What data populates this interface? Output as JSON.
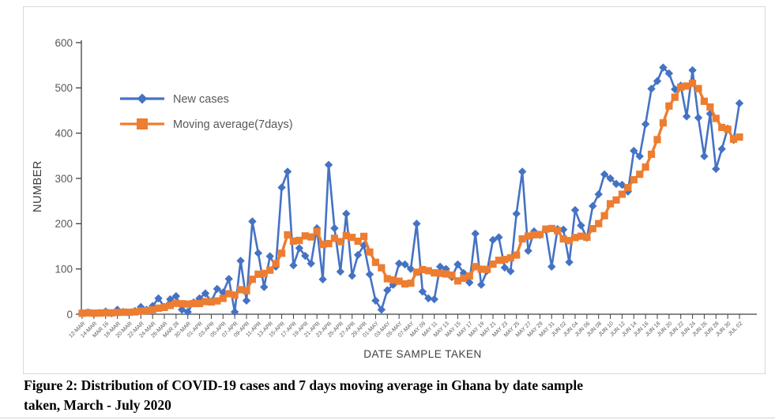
{
  "figure": {
    "caption_line1": "Figure 2: Distribution of COVID-19 cases and 7 days moving average in Ghana by date sample",
    "caption_line2": "taken, March - July 2020"
  },
  "chart_data": {
    "type": "line",
    "title": "",
    "xlabel": "DATE SAMPLE TAKEN",
    "ylabel": "NUMBER",
    "ylim": [
      0,
      600
    ],
    "y_ticks": [
      0,
      100,
      200,
      300,
      400,
      500,
      600
    ],
    "grid": false,
    "legend_position": "upper-left-inside",
    "axis_color": "#404040",
    "tick_label_color": "#595959",
    "x_tick_labels": [
      "12-MAR",
      "14-MAR",
      "MAR 16",
      "18-MAR",
      "20-MAR",
      "22-MAR",
      "24-MAR",
      "26-MAR",
      "MAR 28",
      "30-MAR",
      "01-APR",
      "03-APR",
      "05-APR",
      "07-APR",
      "09-APR",
      "11-APR",
      "13-APR",
      "15-APR",
      "17-APR",
      "19-APR",
      "21-APR",
      "23-APR",
      "25-APR",
      "27-APR",
      "29-APR",
      "01-MAY",
      "03-MAY",
      "05-MAY",
      "07-MAY",
      "MAY 09",
      "MAY 11",
      "MAY 13",
      "MAY 15",
      "MAY 17",
      "MAY 19",
      "MAY 21",
      "MAY 23",
      "MAY 25",
      "MAY 27",
      "MAY 29",
      "MAY 31",
      "JUN 02",
      "JUN 04",
      "JUN 06",
      "JUN 08",
      "JUN 10",
      "JUN 12",
      "JUN 14",
      "JUN 16",
      "JUN 18",
      "JUN 20",
      "JUN 22",
      "JUN 24",
      "JUN 26",
      "JUN 28",
      "JUN 30",
      "JUL 02"
    ],
    "categories": [
      "12-MAR",
      "13-MAR",
      "14-MAR",
      "15-MAR",
      "16-MAR",
      "17-MAR",
      "18-MAR",
      "19-MAR",
      "20-MAR",
      "21-MAR",
      "22-MAR",
      "23-MAR",
      "24-MAR",
      "25-MAR",
      "26-MAR",
      "27-MAR",
      "28-MAR",
      "29-MAR",
      "30-MAR",
      "31-MAR",
      "01-APR",
      "02-APR",
      "03-APR",
      "04-APR",
      "05-APR",
      "06-APR",
      "07-APR",
      "08-APR",
      "09-APR",
      "10-APR",
      "11-APR",
      "12-APR",
      "13-APR",
      "14-APR",
      "15-APR",
      "16-APR",
      "17-APR",
      "18-APR",
      "19-APR",
      "20-APR",
      "21-APR",
      "22-APR",
      "23-APR",
      "24-APR",
      "25-APR",
      "26-APR",
      "27-APR",
      "28-APR",
      "29-APR",
      "30-APR",
      "01-MAY",
      "02-MAY",
      "03-MAY",
      "04-MAY",
      "05-MAY",
      "06-MAY",
      "07-MAY",
      "08-MAY",
      "09-MAY",
      "10-MAY",
      "11-MAY",
      "12-MAY",
      "13-MAY",
      "14-MAY",
      "15-MAY",
      "16-MAY",
      "17-MAY",
      "18-MAY",
      "19-MAY",
      "20-MAY",
      "21-MAY",
      "22-MAY",
      "23-MAY",
      "24-MAY",
      "25-MAY",
      "26-MAY",
      "27-MAY",
      "28-MAY",
      "29-MAY",
      "30-MAY",
      "31-MAY",
      "01-JUN",
      "02-JUN",
      "03-JUN",
      "04-JUN",
      "05-JUN",
      "06-JUN",
      "07-JUN",
      "08-JUN",
      "09-JUN",
      "10-JUN",
      "11-JUN",
      "12-JUN",
      "13-JUN",
      "14-JUN",
      "15-JUN",
      "16-JUN",
      "17-JUN",
      "18-JUN",
      "19-JUN",
      "20-JUN",
      "21-JUN",
      "22-JUN",
      "23-JUN",
      "24-JUN",
      "25-JUN",
      "26-JUN",
      "27-JUN",
      "28-JUN",
      "29-JUN",
      "30-JUN",
      "01-JUL",
      "02-JUL"
    ],
    "series": [
      {
        "name": "New cases",
        "color": "#4472C4",
        "marker": "diamond",
        "values": [
          2,
          4,
          1,
          3,
          6,
          2,
          10,
          5,
          3,
          7,
          16,
          10,
          18,
          35,
          16,
          33,
          40,
          10,
          5,
          26,
          35,
          46,
          28,
          56,
          48,
          78,
          5,
          118,
          30,
          205,
          135,
          60,
          128,
          105,
          280,
          315,
          108,
          146,
          129,
          112,
          190,
          77,
          330,
          190,
          94,
          222,
          85,
          131,
          152,
          88,
          30,
          10,
          53,
          65,
          112,
          110,
          100,
          200,
          50,
          35,
          33,
          105,
          100,
          82,
          110,
          91,
          70,
          178,
          65,
          96,
          164,
          170,
          103,
          95,
          222,
          315,
          140,
          183,
          175,
          186,
          105,
          188,
          187,
          115,
          230,
          196,
          169,
          239,
          265,
          309,
          300,
          288,
          286,
          271,
          361,
          349,
          420,
          498,
          515,
          545,
          532,
          497,
          505,
          437,
          539,
          434,
          349,
          443,
          321,
          365,
          410,
          385,
          466
        ]
      },
      {
        "name": "Moving average(7days)",
        "color": "#ED7D31",
        "marker": "square",
        "values": [
          2,
          3,
          2.3,
          2.5,
          3.2,
          3,
          4,
          4.4,
          4.3,
          5.1,
          7,
          7.6,
          9.9,
          13.4,
          15,
          19.3,
          24,
          23.1,
          22.4,
          23.6,
          23.6,
          27.9,
          27.1,
          29.4,
          34.9,
          45.3,
          42.3,
          54.1,
          51.9,
          77.1,
          88.4,
          90.1,
          97.3,
          111.6,
          134.7,
          175.4,
          161.6,
          163.1,
          173,
          170.7,
          182.9,
          153.9,
          156,
          167.7,
          160.3,
          173.6,
          169.7,
          161.3,
          172,
          137.4,
          114.6,
          102.6,
          78.4,
          75.6,
          72.9,
          66.9,
          68.6,
          92.9,
          98.6,
          96,
          91.4,
          90.4,
          89,
          86.4,
          73.6,
          79.4,
          84.4,
          105.1,
          99.4,
          98.9,
          110.6,
          119.1,
          120.9,
          124.4,
          130.7,
          166.4,
          172.7,
          175.4,
          176.1,
          188,
          189.4,
          184.6,
          166.3,
          162.7,
          169.4,
          172.4,
          170,
          189.1,
          200.1,
          217.6,
          244,
          252.3,
          265.1,
          279.7,
          297.1,
          309.1,
          325,
          353.3,
          385.7,
          422.7,
          460,
          479.4,
          501.7,
          504.1,
          510,
          498.4,
          470.4,
          457.7,
          432.6,
          412.6,
          408.7,
          386.7,
          391.3
        ]
      }
    ]
  }
}
